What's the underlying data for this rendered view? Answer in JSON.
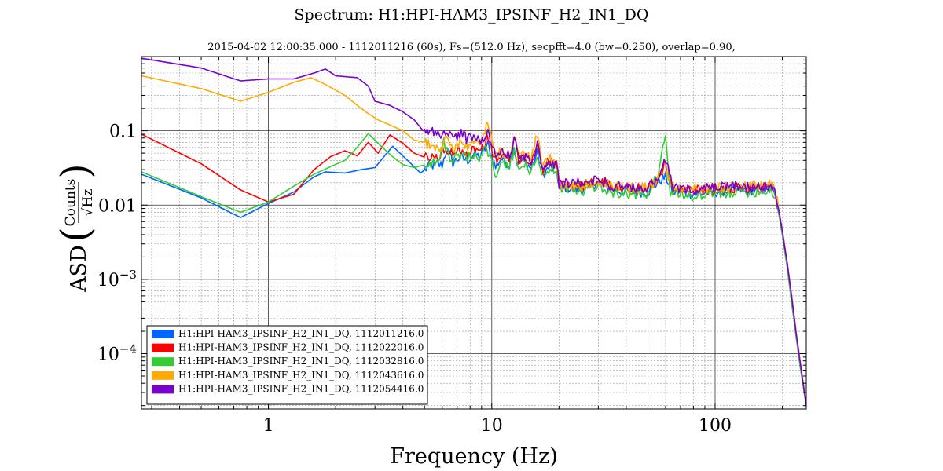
{
  "chart_data": {
    "type": "line",
    "title": "Spectrum: H1:HPI-HAM3_IPSINF_H2_IN1_DQ",
    "subtitle": "2015-04-02 12:00:35.000 - 1112011216 (60s), Fs=(512.0 Hz), secpfft=4.0 (bw=0.250), overlap=0.90,",
    "xlabel": "Frequency (Hz)",
    "ylabel": {
      "prefix": "ASD",
      "numerator": "Counts",
      "denominator": "√Hz"
    },
    "x_scale": "log",
    "y_scale": "log",
    "xlim": [
      0.27,
      256
    ],
    "ylim": [
      1.8e-05,
      1.0
    ],
    "grid": true,
    "legend_position": "lower-left",
    "x_ticks": [
      {
        "value": 1,
        "label": "1"
      },
      {
        "value": 10,
        "label": "10"
      },
      {
        "value": 100,
        "label": "100"
      }
    ],
    "y_ticks": [
      {
        "value": 0.1,
        "base": "0.1",
        "exp": ""
      },
      {
        "value": 0.01,
        "base": "0.01",
        "exp": ""
      },
      {
        "value": 0.001,
        "base": "10",
        "exp": "−3"
      },
      {
        "value": 0.0001,
        "base": "10",
        "exp": "−4"
      }
    ],
    "series": [
      {
        "name": "H1:HPI-HAM3_IPSINF_H2_IN1_DQ, 1112011216.0",
        "color": "#0066ff",
        "points": [
          [
            0.27,
            0.026
          ],
          [
            0.5,
            0.0125
          ],
          [
            0.75,
            0.0068
          ],
          [
            1.0,
            0.0105
          ],
          [
            1.3,
            0.015
          ],
          [
            1.6,
            0.024
          ],
          [
            1.8,
            0.028
          ],
          [
            2.2,
            0.027
          ],
          [
            2.6,
            0.03
          ],
          [
            3.0,
            0.032
          ],
          [
            3.6,
            0.062
          ],
          [
            4.2,
            0.04
          ],
          [
            4.8,
            0.027
          ],
          [
            5.3,
            0.034
          ],
          [
            6.0,
            0.035
          ],
          [
            6.3,
            0.058
          ],
          [
            6.7,
            0.037
          ],
          [
            7.2,
            0.044
          ],
          [
            7.8,
            0.04
          ],
          [
            8.3,
            0.048
          ],
          [
            8.8,
            0.045
          ],
          [
            9.6,
            0.065
          ],
          [
            10.4,
            0.032
          ],
          [
            11.0,
            0.043
          ],
          [
            12.0,
            0.035
          ],
          [
            12.5,
            0.062
          ],
          [
            13.0,
            0.037
          ],
          [
            14.0,
            0.04
          ],
          [
            15.0,
            0.031
          ],
          [
            16.0,
            0.05
          ],
          [
            17.0,
            0.026
          ],
          [
            18.0,
            0.032
          ],
          [
            19.5,
            0.03
          ],
          [
            20.0,
            0.018
          ],
          [
            25,
            0.016
          ],
          [
            30,
            0.02
          ],
          [
            35,
            0.016
          ],
          [
            40,
            0.015
          ],
          [
            50,
            0.015
          ],
          [
            55,
            0.02
          ],
          [
            60,
            0.024
          ],
          [
            65,
            0.015
          ],
          [
            80,
            0.014
          ],
          [
            100,
            0.015
          ],
          [
            120,
            0.016
          ],
          [
            150,
            0.016
          ],
          [
            180,
            0.017
          ],
          [
            190,
            0.01
          ],
          [
            200,
            0.004
          ],
          [
            210,
            0.0015
          ],
          [
            220,
            0.0005
          ],
          [
            230,
            0.00018
          ],
          [
            240,
            7e-05
          ],
          [
            256,
            2e-05
          ]
        ]
      },
      {
        "name": "H1:HPI-HAM3_IPSINF_H2_IN1_DQ, 1112022016.0",
        "color": "#ff0000",
        "points": [
          [
            0.27,
            0.09
          ],
          [
            0.5,
            0.036
          ],
          [
            0.75,
            0.016
          ],
          [
            1.0,
            0.011
          ],
          [
            1.3,
            0.014
          ],
          [
            1.6,
            0.03
          ],
          [
            1.9,
            0.045
          ],
          [
            2.2,
            0.054
          ],
          [
            2.5,
            0.046
          ],
          [
            2.8,
            0.07
          ],
          [
            3.1,
            0.05
          ],
          [
            3.5,
            0.088
          ],
          [
            4.0,
            0.068
          ],
          [
            4.5,
            0.05
          ],
          [
            5.2,
            0.042
          ],
          [
            5.8,
            0.045
          ],
          [
            6.2,
            0.055
          ],
          [
            6.6,
            0.05
          ],
          [
            7.2,
            0.06
          ],
          [
            7.8,
            0.048
          ],
          [
            8.3,
            0.06
          ],
          [
            8.8,
            0.05
          ],
          [
            9.5,
            0.08
          ],
          [
            10.4,
            0.04
          ],
          [
            11.0,
            0.045
          ],
          [
            12.0,
            0.04
          ],
          [
            12.6,
            0.08
          ],
          [
            13.2,
            0.042
          ],
          [
            14.0,
            0.045
          ],
          [
            15.0,
            0.035
          ],
          [
            16.0,
            0.07
          ],
          [
            17.0,
            0.03
          ],
          [
            18.0,
            0.04
          ],
          [
            19.5,
            0.035
          ],
          [
            20.0,
            0.019
          ],
          [
            25,
            0.018
          ],
          [
            30,
            0.022
          ],
          [
            35,
            0.018
          ],
          [
            40,
            0.017
          ],
          [
            50,
            0.017
          ],
          [
            55,
            0.022
          ],
          [
            60,
            0.035
          ],
          [
            65,
            0.017
          ],
          [
            80,
            0.016
          ],
          [
            100,
            0.016
          ],
          [
            120,
            0.017
          ],
          [
            150,
            0.017
          ],
          [
            180,
            0.018
          ],
          [
            190,
            0.011
          ],
          [
            200,
            0.0045
          ],
          [
            210,
            0.0017
          ],
          [
            220,
            0.0006
          ],
          [
            230,
            0.0002
          ],
          [
            240,
            8e-05
          ],
          [
            256,
            2e-05
          ]
        ]
      },
      {
        "name": "H1:HPI-HAM3_IPSINF_H2_IN1_DQ, 1112032816.0",
        "color": "#33cc33",
        "points": [
          [
            0.27,
            0.028
          ],
          [
            0.5,
            0.013
          ],
          [
            0.75,
            0.008
          ],
          [
            1.0,
            0.011
          ],
          [
            1.3,
            0.018
          ],
          [
            1.6,
            0.026
          ],
          [
            1.9,
            0.033
          ],
          [
            2.2,
            0.04
          ],
          [
            2.5,
            0.06
          ],
          [
            2.8,
            0.092
          ],
          [
            3.1,
            0.068
          ],
          [
            3.5,
            0.048
          ],
          [
            4.0,
            0.035
          ],
          [
            4.5,
            0.032
          ],
          [
            5.2,
            0.036
          ],
          [
            5.8,
            0.04
          ],
          [
            6.1,
            0.07
          ],
          [
            6.6,
            0.04
          ],
          [
            7.2,
            0.046
          ],
          [
            7.8,
            0.042
          ],
          [
            8.3,
            0.05
          ],
          [
            8.8,
            0.044
          ],
          [
            9.5,
            0.06
          ],
          [
            10.4,
            0.025
          ],
          [
            11.0,
            0.035
          ],
          [
            12.0,
            0.033
          ],
          [
            12.6,
            0.055
          ],
          [
            13.2,
            0.03
          ],
          [
            14.0,
            0.035
          ],
          [
            15.0,
            0.028
          ],
          [
            16.0,
            0.045
          ],
          [
            17.0,
            0.025
          ],
          [
            18.0,
            0.03
          ],
          [
            19.5,
            0.028
          ],
          [
            20.0,
            0.017
          ],
          [
            25,
            0.015
          ],
          [
            30,
            0.018
          ],
          [
            35,
            0.015
          ],
          [
            40,
            0.014
          ],
          [
            50,
            0.014
          ],
          [
            55,
            0.025
          ],
          [
            60,
            0.09
          ],
          [
            63,
            0.015
          ],
          [
            80,
            0.013
          ],
          [
            100,
            0.014
          ],
          [
            120,
            0.015
          ],
          [
            150,
            0.015
          ],
          [
            180,
            0.016
          ],
          [
            190,
            0.01
          ],
          [
            200,
            0.004
          ],
          [
            210,
            0.0015
          ],
          [
            220,
            0.0005
          ],
          [
            230,
            0.00018
          ],
          [
            240,
            7e-05
          ],
          [
            256,
            2e-05
          ]
        ]
      },
      {
        "name": "H1:HPI-HAM3_IPSINF_H2_IN1_DQ, 1112043616.0",
        "color": "#ffaa00",
        "points": [
          [
            0.27,
            0.55
          ],
          [
            0.5,
            0.37
          ],
          [
            0.75,
            0.25
          ],
          [
            1.0,
            0.33
          ],
          [
            1.3,
            0.45
          ],
          [
            1.55,
            0.52
          ],
          [
            1.8,
            0.42
          ],
          [
            2.2,
            0.3
          ],
          [
            2.5,
            0.22
          ],
          [
            2.8,
            0.17
          ],
          [
            3.1,
            0.14
          ],
          [
            3.5,
            0.12
          ],
          [
            4.0,
            0.1
          ],
          [
            4.5,
            0.075
          ],
          [
            5.0,
            0.07
          ],
          [
            5.5,
            0.06
          ],
          [
            6.0,
            0.058
          ],
          [
            6.3,
            0.09
          ],
          [
            6.7,
            0.055
          ],
          [
            7.2,
            0.07
          ],
          [
            7.8,
            0.06
          ],
          [
            8.3,
            0.075
          ],
          [
            8.8,
            0.065
          ],
          [
            9.6,
            0.13
          ],
          [
            10.4,
            0.045
          ],
          [
            11.0,
            0.055
          ],
          [
            12.0,
            0.045
          ],
          [
            12.6,
            0.09
          ],
          [
            13.2,
            0.048
          ],
          [
            14.0,
            0.05
          ],
          [
            15.0,
            0.04
          ],
          [
            16.0,
            0.092
          ],
          [
            17.0,
            0.032
          ],
          [
            18.0,
            0.045
          ],
          [
            19.5,
            0.035
          ],
          [
            20.0,
            0.019
          ],
          [
            25,
            0.018
          ],
          [
            30,
            0.022
          ],
          [
            35,
            0.018
          ],
          [
            40,
            0.017
          ],
          [
            50,
            0.017
          ],
          [
            55,
            0.022
          ],
          [
            60,
            0.03
          ],
          [
            65,
            0.017
          ],
          [
            80,
            0.017
          ],
          [
            100,
            0.017
          ],
          [
            120,
            0.018
          ],
          [
            150,
            0.018
          ],
          [
            180,
            0.019
          ],
          [
            190,
            0.011
          ],
          [
            200,
            0.0045
          ],
          [
            210,
            0.0017
          ],
          [
            220,
            0.0006
          ],
          [
            230,
            0.0002
          ],
          [
            240,
            8e-05
          ],
          [
            256,
            2e-05
          ]
        ]
      },
      {
        "name": "H1:HPI-HAM3_IPSINF_H2_IN1_DQ, 1112054416.0",
        "color": "#7a00cc",
        "points": [
          [
            0.27,
            0.95
          ],
          [
            0.5,
            0.7
          ],
          [
            0.75,
            0.47
          ],
          [
            1.0,
            0.5
          ],
          [
            1.3,
            0.5
          ],
          [
            1.6,
            0.6
          ],
          [
            1.8,
            0.68
          ],
          [
            2.0,
            0.55
          ],
          [
            2.5,
            0.52
          ],
          [
            2.8,
            0.4
          ],
          [
            3.0,
            0.25
          ],
          [
            3.5,
            0.22
          ],
          [
            4.0,
            0.18
          ],
          [
            4.5,
            0.14
          ],
          [
            5.0,
            0.095
          ],
          [
            5.5,
            0.1
          ],
          [
            6.0,
            0.085
          ],
          [
            6.3,
            0.1
          ],
          [
            6.8,
            0.08
          ],
          [
            7.3,
            0.095
          ],
          [
            7.8,
            0.075
          ],
          [
            8.3,
            0.09
          ],
          [
            8.8,
            0.07
          ],
          [
            9.6,
            0.1
          ],
          [
            10.4,
            0.045
          ],
          [
            11.0,
            0.055
          ],
          [
            12.0,
            0.045
          ],
          [
            12.6,
            0.075
          ],
          [
            13.2,
            0.045
          ],
          [
            14.0,
            0.045
          ],
          [
            15.0,
            0.036
          ],
          [
            16.0,
            0.07
          ],
          [
            17.0,
            0.03
          ],
          [
            18.0,
            0.04
          ],
          [
            19.5,
            0.035
          ],
          [
            20.0,
            0.019
          ],
          [
            25,
            0.02
          ],
          [
            30,
            0.022
          ],
          [
            35,
            0.018
          ],
          [
            40,
            0.017
          ],
          [
            50,
            0.017
          ],
          [
            55,
            0.022
          ],
          [
            60,
            0.04
          ],
          [
            65,
            0.017
          ],
          [
            80,
            0.016
          ],
          [
            100,
            0.017
          ],
          [
            120,
            0.018
          ],
          [
            150,
            0.017
          ],
          [
            180,
            0.018
          ],
          [
            190,
            0.011
          ],
          [
            200,
            0.0045
          ],
          [
            210,
            0.0017
          ],
          [
            220,
            0.0006
          ],
          [
            230,
            0.0002
          ],
          [
            240,
            8e-05
          ],
          [
            256,
            2e-05
          ]
        ]
      }
    ]
  }
}
